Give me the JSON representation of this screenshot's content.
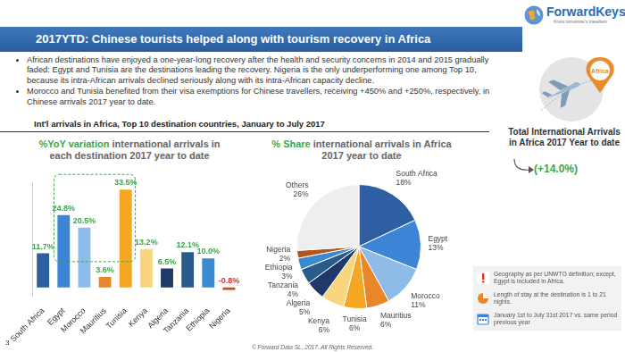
{
  "logo": {
    "name": "ForwardKeys",
    "tagline": "Know tomorrow's travellers"
  },
  "header": {
    "title": "2017YTD: Chinese tourists helped along with tourism recovery in Africa"
  },
  "bullets": [
    "African destinations have enjoyed a one-year-long recovery after the health and security concerns in 2014 and 2015 gradually faded: Egypt and Tunisia are the destinations leading the recovery. Nigeria is the only underperforming one among Top 10, because its intra-African arrivals declined seriously along with its intra-African capacity decline.",
    "Morocco and Tunisia benefited from their visa exemptions for Chinese travellers, receiving +450% and +250%, respectively, in Chinese arrivals 2017 year to date."
  ],
  "subtitle": "Int'l arrivals in Africa, Top 10 destination countries, January to July 2017",
  "chart_data": [
    {
      "type": "bar",
      "title": "%YoY variation international arrivals in each destination 2017 year to date",
      "categories": [
        "South Africa",
        "Egypt",
        "Morocco",
        "Mauritius",
        "Tunisia",
        "Kenya",
        "Algeria",
        "Tanzania",
        "Ethiopia",
        "Nigeria"
      ],
      "values": [
        11.7,
        24.8,
        20.5,
        3.6,
        33.5,
        13.2,
        6.5,
        12.1,
        10.0,
        -0.8
      ],
      "value_labels": [
        "11.7%",
        "24.8%",
        "20.5%",
        "3.6%",
        "33.5%",
        "13.2%",
        "6.5%",
        "12.1%",
        "10.0%",
        "-0.8%"
      ],
      "colors": [
        "#2e5fa3",
        "#3b84d6",
        "#8fbbe8",
        "#e8862a",
        "#f5a623",
        "#f9d67e",
        "#1f3a68",
        "#2b5a8c",
        "#3a8ad0",
        "#b5541c"
      ],
      "ylim": [
        -3,
        36
      ],
      "grid": false,
      "tick_labels": "x",
      "data_labels": true
    },
    {
      "type": "pie",
      "title": "% Share international arrivals in Africa 2017 year to date",
      "categories": [
        "South Africa",
        "Egypt",
        "Morocco",
        "Mauritius",
        "Tunisia",
        "Kenya",
        "Algeria",
        "Tanzania",
        "Ethiopia",
        "Nigeria",
        "Others"
      ],
      "values": [
        18,
        13,
        11,
        6,
        6,
        6,
        5,
        4,
        3,
        2,
        26
      ],
      "value_labels": [
        "18%",
        "13%",
        "11%",
        "6%",
        "6%",
        "6%",
        "5%",
        "4%",
        "3%",
        "2%",
        "26%"
      ],
      "colors": [
        "#2e5fa3",
        "#3b84d6",
        "#8fbbe8",
        "#e8862a",
        "#f5a623",
        "#f9d67e",
        "#1f3a68",
        "#2b5a8c",
        "#3a8ad0",
        "#b5541c",
        "#eeeeee"
      ],
      "data_labels": true
    }
  ],
  "side_panel": {
    "badge": "Africa",
    "label": "Total International Arrivals in Africa 2017 Year to date",
    "change": "(+14.0%)"
  },
  "notes": [
    "Geography as per UNWTO definition; except, Egypt is included in Africa.",
    "Length of stay at the destination is 1 to 21 nights.",
    "January 1st to July 31st 2017 vs. same period previous year"
  ],
  "footer": "© Forward Data SL, 2017. All Rights Reserved.",
  "page_number": "3"
}
